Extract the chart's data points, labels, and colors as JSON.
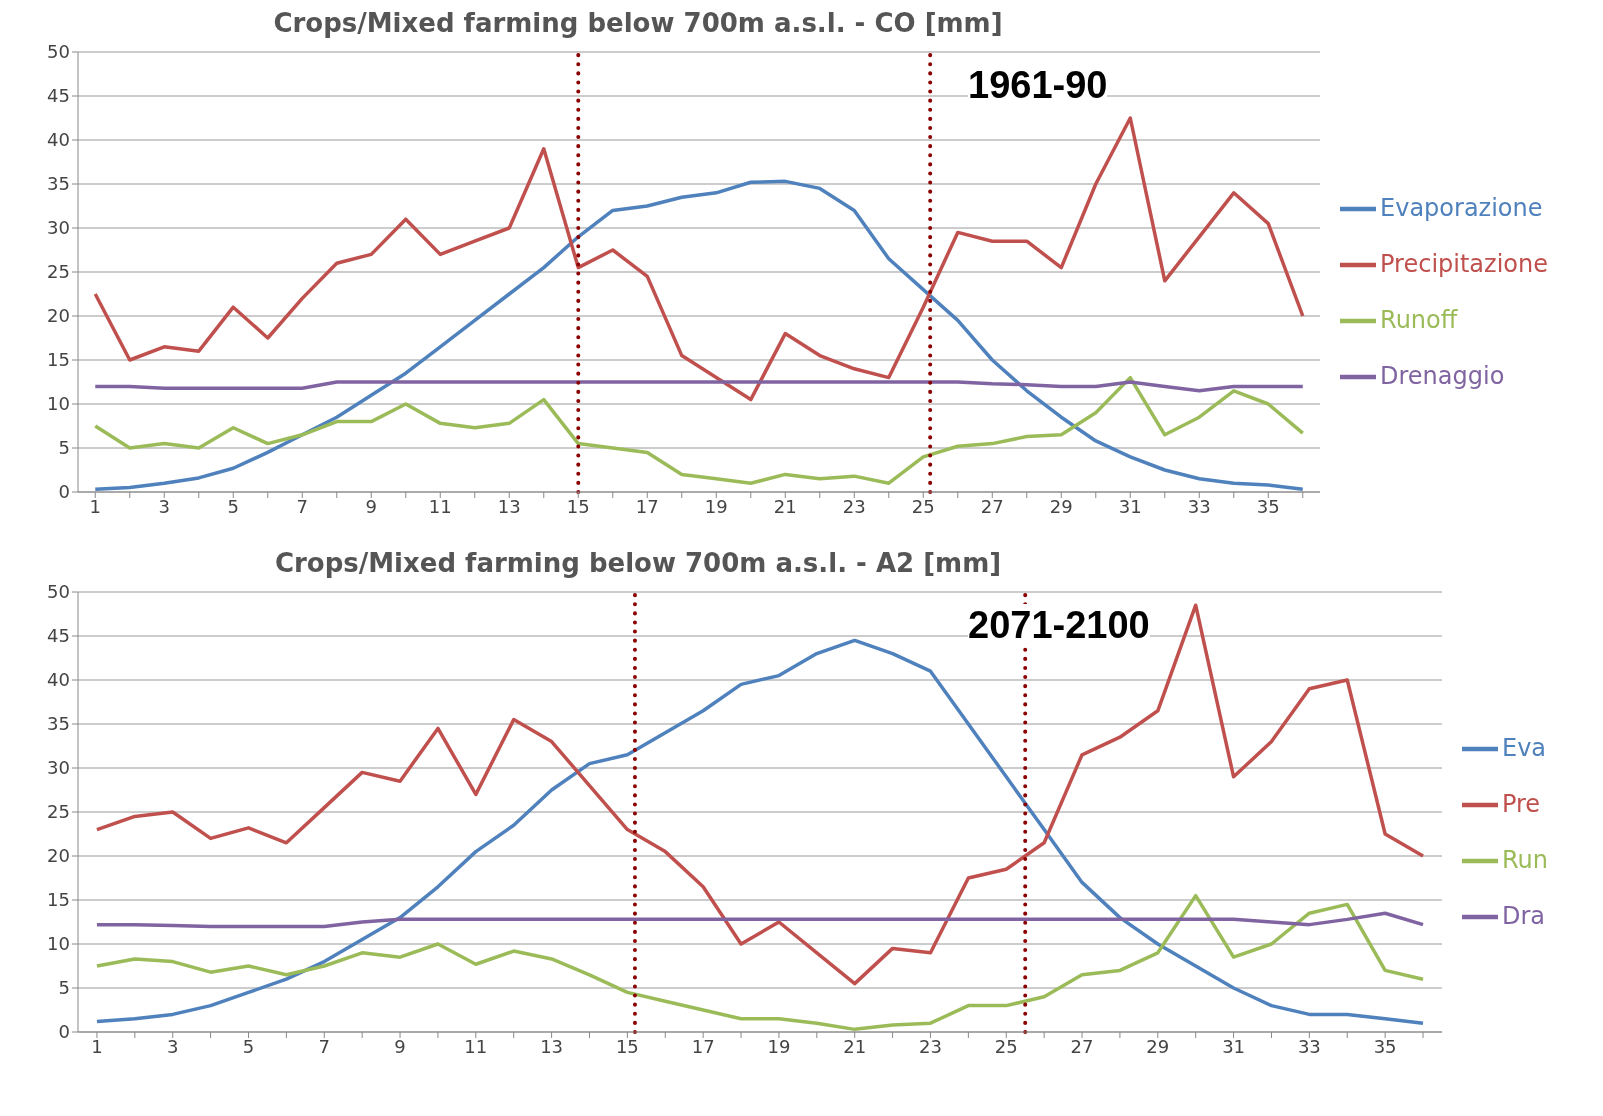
{
  "chart_data": [
    {
      "type": "line",
      "title": "Crops/Mixed farming below 700m a.s.l. - CO [mm]",
      "annotations": [
        "1961-90"
      ],
      "x": [
        1,
        2,
        3,
        4,
        5,
        6,
        7,
        8,
        9,
        10,
        11,
        12,
        13,
        14,
        15,
        16,
        17,
        18,
        19,
        20,
        21,
        22,
        23,
        24,
        25,
        26,
        27,
        28,
        29,
        30,
        31,
        32,
        33,
        34,
        35,
        36
      ],
      "series": [
        {
          "name": "Evaporazione",
          "color": "#4f81bd",
          "values": [
            0.3,
            0.5,
            1,
            1.6,
            2.7,
            4.5,
            6.5,
            8.5,
            11,
            13.5,
            16.5,
            19.5,
            22.5,
            25.5,
            29,
            32,
            32.5,
            33.5,
            34,
            35.2,
            35.3,
            34.5,
            32,
            26.5,
            23,
            19.5,
            15,
            11.5,
            8.5,
            5.8,
            4,
            2.5,
            1.5,
            1,
            0.8,
            0.3
          ]
        },
        {
          "name": "Precipitazione",
          "color": "#c0504d",
          "values": [
            22.5,
            15,
            16.5,
            16,
            21,
            17.5,
            22,
            26,
            27,
            31,
            27,
            28.5,
            30,
            39,
            25.5,
            27.5,
            24.5,
            15.5,
            13,
            10.5,
            18,
            15.5,
            14,
            13,
            21,
            29.5,
            28.5,
            28.5,
            25.5,
            35,
            42.5,
            24,
            29,
            34,
            30.5,
            20
          ]
        },
        {
          "name": "Runoff",
          "color": "#9bbb59",
          "values": [
            7.5,
            5,
            5.5,
            5,
            7.3,
            5.5,
            6.5,
            8,
            8,
            10,
            7.8,
            7.3,
            7.8,
            10.5,
            5.5,
            5,
            4.5,
            2,
            1.5,
            1,
            2,
            1.5,
            1.8,
            1,
            4,
            5.2,
            5.5,
            6.3,
            6.5,
            9,
            13,
            6.5,
            8.5,
            11.5,
            10,
            6.7
          ]
        },
        {
          "name": "Drenaggio",
          "color": "#8064a2",
          "values": [
            12,
            12,
            11.8,
            11.8,
            11.8,
            11.8,
            11.8,
            12.5,
            12.5,
            12.5,
            12.5,
            12.5,
            12.5,
            12.5,
            12.5,
            12.5,
            12.5,
            12.5,
            12.5,
            12.5,
            12.5,
            12.5,
            12.5,
            12.5,
            12.5,
            12.5,
            12.3,
            12.2,
            12,
            12,
            12.5,
            12,
            11.5,
            12,
            12,
            12
          ]
        }
      ],
      "xlim": [
        0.5,
        36.5
      ],
      "xticks": [
        1,
        {
          "value": 2,
          "label": null
        },
        3,
        {
          "value": 4,
          "label": null
        },
        5,
        {
          "value": 6,
          "label": null
        },
        7,
        {
          "value": 8,
          "label": null
        },
        9,
        {
          "value": 10,
          "label": null
        },
        11,
        {
          "value": 12,
          "label": null
        },
        13,
        {
          "value": 14,
          "label": null
        },
        15,
        {
          "value": 16,
          "label": null
        },
        17,
        {
          "value": 18,
          "label": null
        },
        19,
        {
          "value": 20,
          "label": null
        },
        21,
        {
          "value": 22,
          "label": null
        },
        23,
        {
          "value": 24,
          "label": null
        },
        25,
        {
          "value": 26,
          "label": null
        },
        27,
        {
          "value": 28,
          "label": null
        },
        29,
        {
          "value": 30,
          "label": null
        },
        31,
        {
          "value": 32,
          "label": null
        },
        33,
        {
          "value": 34,
          "label": null
        },
        35,
        {
          "value": 36,
          "label": null
        }
      ],
      "ylim": [
        0,
        50
      ],
      "yticks": [
        0,
        5,
        10,
        15,
        20,
        25,
        30,
        35,
        40,
        45,
        50
      ],
      "grid": "y",
      "legend": "right",
      "marker": "none",
      "line_style": "solid",
      "ref_lines": [
        {
          "axis": "x",
          "value": 15,
          "color": "#8b0000",
          "line_style": "dotted"
        },
        {
          "axis": "x",
          "value": 25.2,
          "color": "#8b0000",
          "line_style": "dotted"
        }
      ]
    },
    {
      "type": "line",
      "title": "Crops/Mixed farming below 700m a.s.l. - A2 [mm]",
      "annotations": [
        "2071-2100"
      ],
      "x": [
        1,
        2,
        3,
        4,
        5,
        6,
        7,
        8,
        9,
        10,
        11,
        12,
        13,
        14,
        15,
        16,
        17,
        18,
        19,
        20,
        21,
        22,
        23,
        24,
        25,
        26,
        27,
        28,
        29,
        30,
        31,
        32,
        33,
        34,
        35,
        36
      ],
      "series": [
        {
          "name": "Eva",
          "color": "#4f81bd",
          "values": [
            1.2,
            1.5,
            2,
            3,
            4.5,
            6,
            8,
            10.5,
            13,
            16.5,
            20.5,
            23.5,
            27.5,
            30.5,
            31.5,
            34,
            36.5,
            39.5,
            40.5,
            43,
            44.5,
            43,
            41,
            35,
            29,
            23,
            17,
            13,
            10,
            7.5,
            5,
            3,
            2,
            2,
            1.5,
            1
          ]
        },
        {
          "name": "Pre",
          "color": "#c0504d",
          "values": [
            23,
            24.5,
            25,
            22,
            23.2,
            21.5,
            25.5,
            29.5,
            28.5,
            34.5,
            27,
            35.5,
            33,
            28,
            23,
            20.5,
            16.5,
            10,
            12.5,
            9,
            5.5,
            9.5,
            9,
            17.5,
            18.5,
            21.5,
            31.5,
            33.5,
            36.5,
            48.5,
            29,
            33,
            39,
            40,
            22.5,
            20
          ]
        },
        {
          "name": "Run",
          "color": "#9bbb59",
          "values": [
            7.5,
            8.3,
            8,
            6.8,
            7.5,
            6.5,
            7.5,
            9,
            8.5,
            10,
            7.7,
            9.2,
            8.3,
            6.5,
            4.5,
            3.5,
            2.5,
            1.5,
            1.5,
            1,
            0.3,
            0.8,
            1,
            3,
            3,
            4,
            6.5,
            7,
            9,
            15.5,
            8.5,
            10,
            13.5,
            14.5,
            7,
            6
          ]
        },
        {
          "name": "Dra",
          "color": "#8064a2",
          "values": [
            12.2,
            12.2,
            12.1,
            12,
            12,
            12,
            12,
            12.5,
            12.8,
            12.8,
            12.8,
            12.8,
            12.8,
            12.8,
            12.8,
            12.8,
            12.8,
            12.8,
            12.8,
            12.8,
            12.8,
            12.8,
            12.8,
            12.8,
            12.8,
            12.8,
            12.8,
            12.8,
            12.8,
            12.8,
            12.8,
            12.5,
            12.2,
            12.8,
            13.5,
            12.2
          ]
        }
      ],
      "xlim": [
        0.5,
        36.5
      ],
      "xticks": [
        1,
        {
          "value": 2,
          "label": null
        },
        3,
        {
          "value": 4,
          "label": null
        },
        5,
        {
          "value": 6,
          "label": null
        },
        7,
        {
          "value": 8,
          "label": null
        },
        9,
        {
          "value": 10,
          "label": null
        },
        11,
        {
          "value": 12,
          "label": null
        },
        13,
        {
          "value": 14,
          "label": null
        },
        15,
        {
          "value": 16,
          "label": null
        },
        17,
        {
          "value": 18,
          "label": null
        },
        19,
        {
          "value": 20,
          "label": null
        },
        21,
        {
          "value": 22,
          "label": null
        },
        23,
        {
          "value": 24,
          "label": null
        },
        25,
        {
          "value": 26,
          "label": null
        },
        27,
        {
          "value": 28,
          "label": null
        },
        29,
        {
          "value": 30,
          "label": null
        },
        31,
        {
          "value": 32,
          "label": null
        },
        33,
        {
          "value": 34,
          "label": null
        },
        35,
        {
          "value": 36,
          "label": null
        }
      ],
      "ylim": [
        0,
        50
      ],
      "yticks": [
        0,
        5,
        10,
        15,
        20,
        25,
        30,
        35,
        40,
        45,
        50
      ],
      "grid": "y",
      "legend": "right",
      "marker": "none",
      "line_style": "solid",
      "ref_lines": [
        {
          "axis": "x",
          "value": 15.2,
          "color": "#8b0000",
          "line_style": "dotted"
        },
        {
          "axis": "x",
          "value": 25.5,
          "color": "#8b0000",
          "line_style": "dotted"
        }
      ]
    }
  ]
}
